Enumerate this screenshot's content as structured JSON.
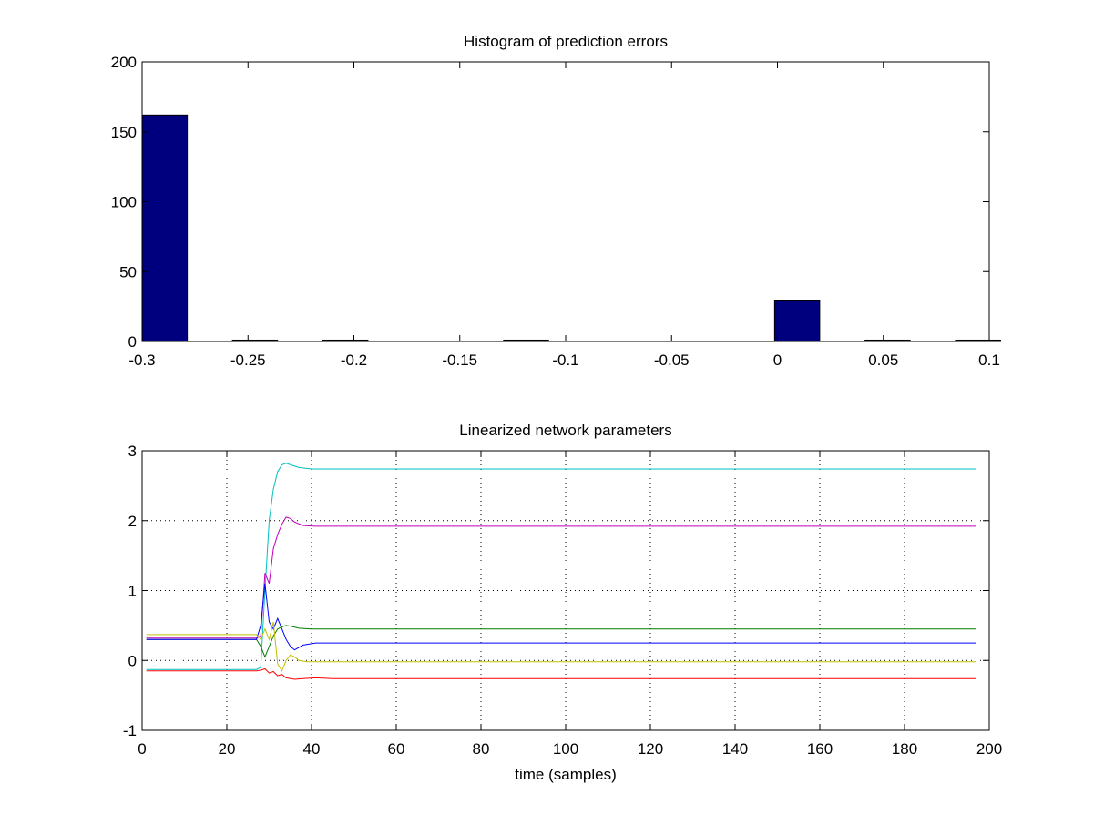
{
  "chart_data": [
    {
      "type": "bar",
      "title": "Histogram of prediction errors",
      "xlabel": "",
      "ylabel": "",
      "xlim": [
        -0.3,
        0.1
      ],
      "ylim": [
        0,
        200
      ],
      "grid": false,
      "x_ticks": [
        "-0.3",
        "-0.25",
        "-0.2",
        "-0.15",
        "-0.1",
        "-0.05",
        "0",
        "0.05",
        "0.1"
      ],
      "y_ticks": [
        "0",
        "50",
        "100",
        "150",
        "200"
      ],
      "bar_color": "#00007f",
      "bin_width": 0.0213,
      "bins": [
        {
          "center": -0.2893,
          "count": 162
        },
        {
          "center": -0.2467,
          "count": 1
        },
        {
          "center": -0.204,
          "count": 1
        },
        {
          "center": -0.1187,
          "count": 1
        },
        {
          "center": 0.0093,
          "count": 29
        },
        {
          "center": 0.052,
          "count": 1
        },
        {
          "center": 0.0947,
          "count": 1
        }
      ]
    },
    {
      "type": "line",
      "title": "Linearized network parameters",
      "xlabel": "time (samples)",
      "ylabel": "",
      "xlim": [
        0,
        200
      ],
      "ylim": [
        -1,
        3
      ],
      "grid": true,
      "x_ticks": [
        "0",
        "20",
        "40",
        "60",
        "80",
        "100",
        "120",
        "140",
        "160",
        "180",
        "200"
      ],
      "y_ticks": [
        "-1",
        "0",
        "1",
        "2",
        "3"
      ],
      "series": [
        {
          "color": "#00bfbf",
          "x": [
            1,
            27,
            28,
            29,
            30,
            31,
            32,
            33,
            34,
            35,
            37,
            40,
            45,
            197
          ],
          "y": [
            -0.13,
            -0.13,
            -0.1,
            1.0,
            2.0,
            2.45,
            2.7,
            2.8,
            2.82,
            2.8,
            2.76,
            2.74,
            2.74,
            2.74
          ]
        },
        {
          "color": "#bf00bf",
          "x": [
            1,
            27,
            28,
            29,
            30,
            31,
            32,
            33,
            34,
            35,
            36,
            38,
            41,
            45,
            197
          ],
          "y": [
            0.32,
            0.32,
            0.35,
            1.25,
            1.1,
            1.6,
            1.8,
            1.95,
            2.05,
            2.03,
            1.98,
            1.93,
            1.92,
            1.92,
            1.92
          ]
        },
        {
          "color": "#007f00",
          "x": [
            1,
            27,
            28,
            29,
            30,
            31,
            32,
            33,
            34,
            35,
            37,
            40,
            45,
            197
          ],
          "y": [
            0.3,
            0.3,
            0.2,
            0.05,
            0.2,
            0.35,
            0.45,
            0.48,
            0.5,
            0.49,
            0.46,
            0.45,
            0.45,
            0.45
          ]
        },
        {
          "color": "#0000ff",
          "x": [
            1,
            27,
            28,
            29,
            30,
            31,
            32,
            33,
            34,
            35,
            36,
            38,
            41,
            45,
            197
          ],
          "y": [
            0.3,
            0.3,
            0.5,
            1.1,
            0.55,
            0.45,
            0.6,
            0.45,
            0.3,
            0.2,
            0.15,
            0.22,
            0.25,
            0.25,
            0.25
          ]
        },
        {
          "color": "#bfbf00",
          "x": [
            1,
            27,
            28,
            29,
            30,
            31,
            32,
            33,
            34,
            35,
            36,
            37,
            39,
            42,
            197
          ],
          "y": [
            0.37,
            0.37,
            0.3,
            0.45,
            0.3,
            0.55,
            -0.05,
            -0.15,
            0.0,
            0.08,
            0.05,
            0.0,
            -0.02,
            -0.02,
            -0.02
          ]
        },
        {
          "color": "#ff0000",
          "x": [
            1,
            27,
            28,
            29,
            30,
            31,
            32,
            33,
            34,
            36,
            38,
            41,
            45,
            197
          ],
          "y": [
            -0.15,
            -0.15,
            -0.14,
            -0.12,
            -0.18,
            -0.16,
            -0.22,
            -0.2,
            -0.25,
            -0.27,
            -0.26,
            -0.25,
            -0.26,
            -0.26
          ]
        }
      ]
    }
  ]
}
